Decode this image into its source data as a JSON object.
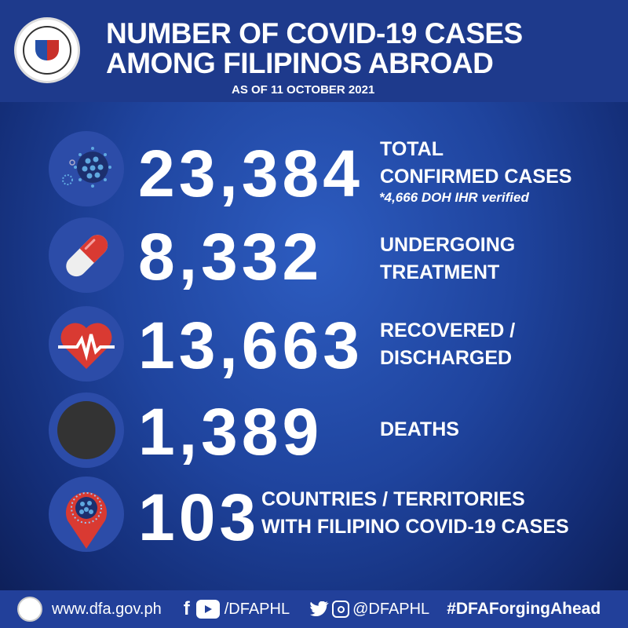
{
  "header": {
    "title_line1": "NUMBER OF  COVID-19 CASES",
    "title_line2": "AMONG FILIPINOS ABROAD",
    "subtitle": "AS OF 11 OCTOBER 2021",
    "seal": "Department of Foreign Affairs Philippines"
  },
  "stats": [
    {
      "icon": "virus-icon",
      "value": "23,384",
      "label1": "TOTAL",
      "label2": "CONFIRMED CASES",
      "note": "*4,666 DOH IHR verified"
    },
    {
      "icon": "pill-icon",
      "value": "8,332",
      "label1": "UNDERGOING",
      "label2": "TREATMENT"
    },
    {
      "icon": "heartbeat-icon",
      "value": "13,663",
      "label1": "RECOVERED /",
      "label2": "DISCHARGED"
    },
    {
      "icon": "black-circle-icon",
      "value": "1,389",
      "label1": "DEATHS"
    },
    {
      "icon": "location-pin-virus-icon",
      "value": "103",
      "label1": "COUNTRIES / TERRITORIES",
      "label2": "WITH FILIPINO COVID-19 CASES"
    }
  ],
  "footer": {
    "website": "www.dfa.gov.ph",
    "facebook_youtube": "/DFAPHL",
    "twitter_instagram": "@DFAPHL",
    "hashtag": "#DFAForgingAhead"
  },
  "colors": {
    "header": "#1e3a8c",
    "icon_circle": "#2c4ca8",
    "red": "#d93a32",
    "footer": "#22409a"
  }
}
